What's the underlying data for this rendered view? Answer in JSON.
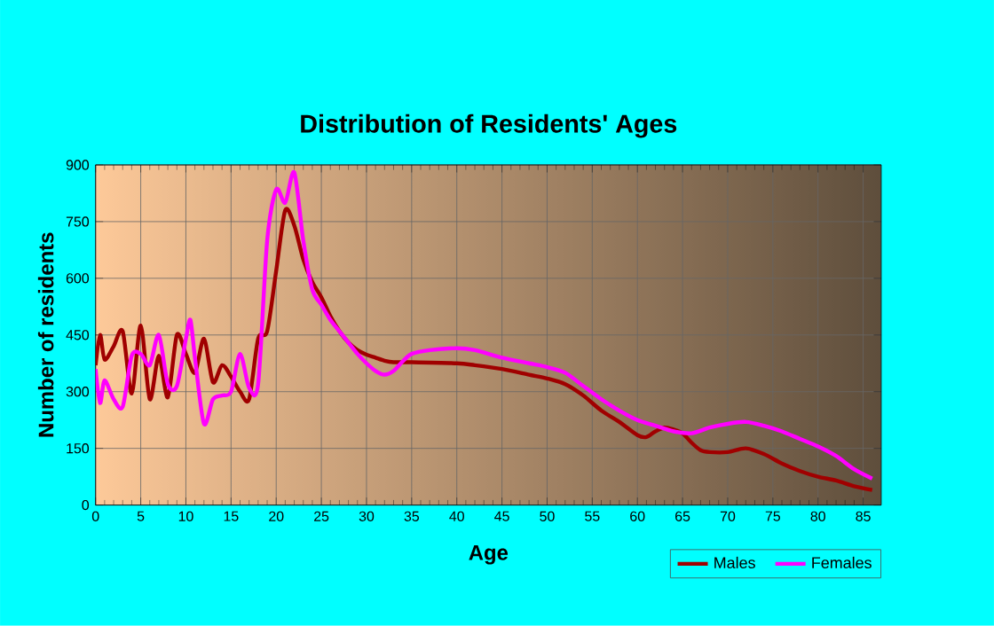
{
  "chart_data": {
    "type": "line",
    "title": "Distribution of Residents' Ages",
    "xlabel": "Age",
    "ylabel": "Number of residents",
    "xlim": [
      0,
      87
    ],
    "ylim": [
      0,
      900
    ],
    "xticks": [
      0,
      5,
      10,
      15,
      20,
      25,
      30,
      35,
      40,
      45,
      50,
      55,
      60,
      65,
      70,
      75,
      80,
      85
    ],
    "yticks": [
      0,
      150,
      300,
      450,
      600,
      750,
      900
    ],
    "grid": true,
    "legend": "bottom right",
    "marker": "none",
    "line_style": "solid",
    "series": [
      {
        "name": "Males",
        "color": "#a00000",
        "x": [
          0,
          0.5,
          1,
          2,
          3,
          4,
          5,
          6,
          7,
          8,
          9,
          10,
          11,
          12,
          13,
          14,
          15,
          16,
          17,
          18,
          19,
          20,
          21,
          22,
          23,
          24,
          25,
          26,
          27,
          28,
          29,
          30,
          31,
          32,
          33,
          35,
          40,
          42,
          45,
          48,
          50,
          52,
          54,
          56,
          58,
          60,
          61,
          62,
          63,
          64,
          65,
          66,
          67,
          68,
          70,
          72,
          74,
          76,
          78,
          80,
          82,
          84,
          86
        ],
        "values": [
          370,
          450,
          385,
          420,
          460,
          295,
          475,
          280,
          395,
          285,
          450,
          400,
          350,
          440,
          325,
          370,
          340,
          300,
          280,
          440,
          460,
          620,
          780,
          740,
          650,
          590,
          550,
          500,
          460,
          430,
          410,
          398,
          390,
          382,
          378,
          378,
          375,
          370,
          360,
          345,
          335,
          320,
          290,
          250,
          220,
          185,
          180,
          195,
          205,
          200,
          190,
          165,
          145,
          140,
          140,
          150,
          135,
          110,
          90,
          75,
          65,
          50,
          40
        ]
      },
      {
        "name": "Females",
        "color": "#ff00ff",
        "x": [
          0,
          0.5,
          1,
          2,
          3,
          4,
          5,
          6,
          7,
          8,
          9,
          10,
          10.5,
          11,
          12,
          13,
          14,
          15,
          16,
          17,
          18,
          19,
          20,
          21,
          22,
          23,
          24,
          25,
          26,
          27,
          28,
          29,
          30,
          31,
          32,
          33,
          34,
          35,
          37,
          40,
          42,
          45,
          48,
          50,
          52,
          54,
          56,
          58,
          60,
          62,
          64,
          66,
          68,
          70,
          72,
          74,
          76,
          78,
          80,
          82,
          84,
          86
        ],
        "values": [
          360,
          270,
          330,
          280,
          260,
          395,
          400,
          370,
          450,
          320,
          315,
          440,
          490,
          390,
          215,
          280,
          290,
          300,
          400,
          310,
          320,
          700,
          835,
          800,
          880,
          700,
          570,
          530,
          490,
          460,
          430,
          400,
          375,
          355,
          345,
          355,
          380,
          400,
          410,
          415,
          410,
          390,
          375,
          365,
          350,
          315,
          280,
          250,
          225,
          210,
          195,
          190,
          205,
          215,
          220,
          210,
          195,
          175,
          155,
          130,
          95,
          70
        ]
      }
    ]
  }
}
